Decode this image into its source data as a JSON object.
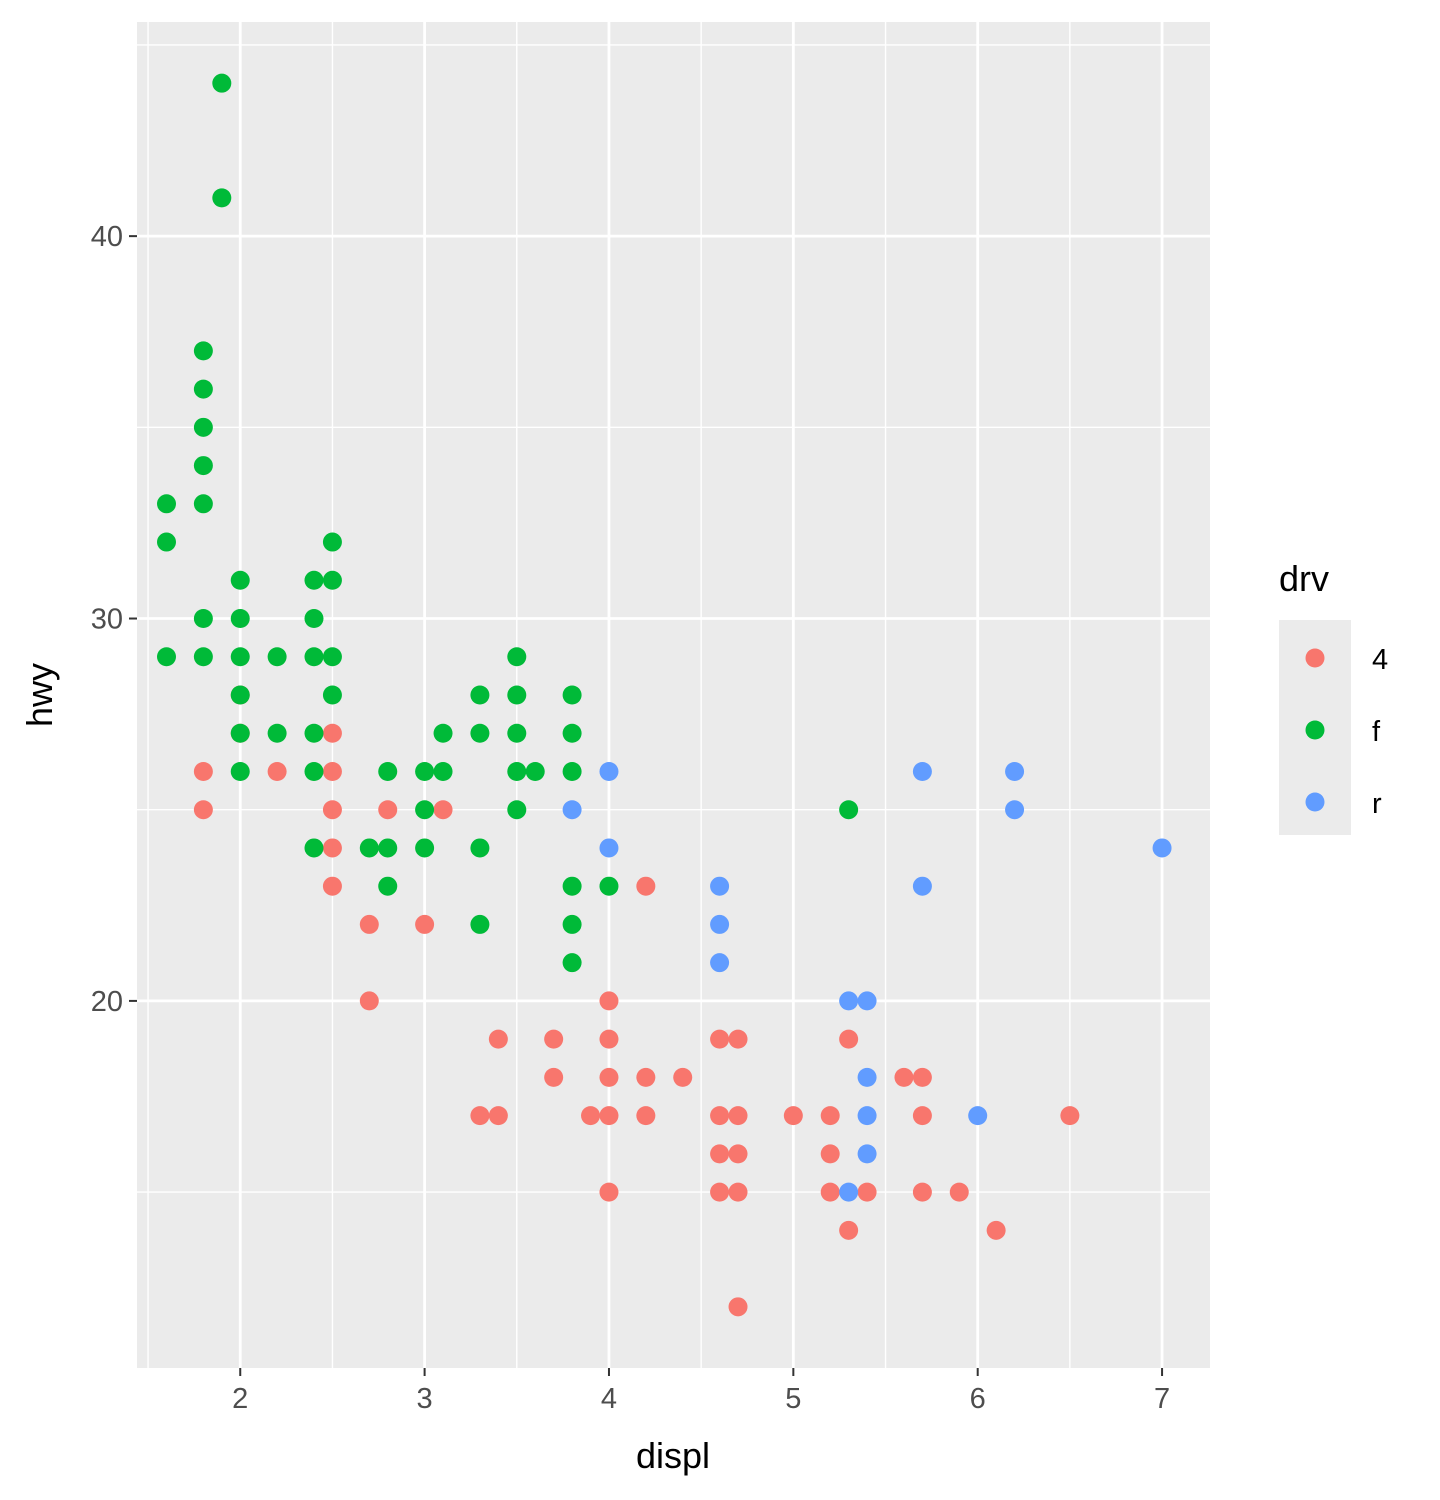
{
  "chart_data": {
    "type": "scatter",
    "title": "",
    "xlabel": "displ",
    "ylabel": "hwy",
    "xlim": [
      1.44,
      7.26
    ],
    "ylim": [
      10.4,
      45.6
    ],
    "xticks": [
      "2",
      "3",
      "4",
      "5",
      "6",
      "7"
    ],
    "xtick_values": [
      2,
      3,
      4,
      5,
      6,
      7
    ],
    "yticks": [
      "20",
      "30",
      "40"
    ],
    "ytick_values": [
      20,
      30,
      40
    ],
    "grid": true,
    "legend_title": "drv",
    "legend_position": "right",
    "series": [
      {
        "name": "4",
        "color": "#F8766D",
        "points": [
          [
            1.8,
            26
          ],
          [
            1.8,
            25
          ],
          [
            2.0,
            28
          ],
          [
            2.0,
            27
          ],
          [
            2.2,
            26
          ],
          [
            2.5,
            27
          ],
          [
            2.5,
            26
          ],
          [
            2.5,
            25
          ],
          [
            2.5,
            24
          ],
          [
            2.5,
            23
          ],
          [
            2.7,
            22
          ],
          [
            2.7,
            20
          ],
          [
            2.8,
            25
          ],
          [
            3.0,
            22
          ],
          [
            3.1,
            25
          ],
          [
            3.3,
            17
          ],
          [
            3.4,
            19
          ],
          [
            3.4,
            17
          ],
          [
            3.7,
            19
          ],
          [
            3.7,
            18
          ],
          [
            3.9,
            17
          ],
          [
            4.0,
            20
          ],
          [
            4.0,
            19
          ],
          [
            4.0,
            18
          ],
          [
            4.0,
            17
          ],
          [
            4.0,
            15
          ],
          [
            4.2,
            23
          ],
          [
            4.2,
            18
          ],
          [
            4.2,
            17
          ],
          [
            4.4,
            18
          ],
          [
            4.6,
            19
          ],
          [
            4.6,
            17
          ],
          [
            4.6,
            16
          ],
          [
            4.6,
            15
          ],
          [
            4.7,
            19
          ],
          [
            4.7,
            17
          ],
          [
            4.7,
            16
          ],
          [
            4.7,
            15
          ],
          [
            4.7,
            12
          ],
          [
            5.0,
            17
          ],
          [
            5.2,
            17
          ],
          [
            5.2,
            16
          ],
          [
            5.2,
            15
          ],
          [
            5.3,
            19
          ],
          [
            5.3,
            14
          ],
          [
            5.4,
            15
          ],
          [
            5.6,
            18
          ],
          [
            5.7,
            18
          ],
          [
            5.7,
            17
          ],
          [
            5.7,
            15
          ],
          [
            5.9,
            15
          ],
          [
            6.1,
            14
          ],
          [
            6.5,
            17
          ]
        ]
      },
      {
        "name": "f",
        "color": "#00BA38",
        "points": [
          [
            1.6,
            33
          ],
          [
            1.6,
            32
          ],
          [
            1.6,
            29
          ],
          [
            1.8,
            37
          ],
          [
            1.8,
            36
          ],
          [
            1.8,
            35
          ],
          [
            1.8,
            34
          ],
          [
            1.8,
            33
          ],
          [
            1.8,
            30
          ],
          [
            1.8,
            29
          ],
          [
            1.9,
            44
          ],
          [
            1.9,
            41
          ],
          [
            2.0,
            31
          ],
          [
            2.0,
            30
          ],
          [
            2.0,
            29
          ],
          [
            2.0,
            28
          ],
          [
            2.0,
            27
          ],
          [
            2.0,
            26
          ],
          [
            2.2,
            29
          ],
          [
            2.2,
            27
          ],
          [
            2.4,
            31
          ],
          [
            2.4,
            30
          ],
          [
            2.4,
            29
          ],
          [
            2.4,
            27
          ],
          [
            2.4,
            26
          ],
          [
            2.4,
            24
          ],
          [
            2.5,
            32
          ],
          [
            2.5,
            31
          ],
          [
            2.5,
            29
          ],
          [
            2.5,
            28
          ],
          [
            2.7,
            24
          ],
          [
            2.8,
            26
          ],
          [
            2.8,
            24
          ],
          [
            2.8,
            23
          ],
          [
            3.0,
            26
          ],
          [
            3.0,
            25
          ],
          [
            3.0,
            24
          ],
          [
            3.1,
            27
          ],
          [
            3.1,
            26
          ],
          [
            3.3,
            28
          ],
          [
            3.3,
            27
          ],
          [
            3.3,
            24
          ],
          [
            3.3,
            22
          ],
          [
            3.5,
            29
          ],
          [
            3.5,
            28
          ],
          [
            3.5,
            27
          ],
          [
            3.5,
            26
          ],
          [
            3.5,
            25
          ],
          [
            3.6,
            26
          ],
          [
            3.8,
            28
          ],
          [
            3.8,
            27
          ],
          [
            3.8,
            26
          ],
          [
            3.8,
            23
          ],
          [
            3.8,
            22
          ],
          [
            3.8,
            21
          ],
          [
            4.0,
            23
          ],
          [
            5.3,
            25
          ]
        ]
      },
      {
        "name": "r",
        "color": "#619CFF",
        "points": [
          [
            3.8,
            25
          ],
          [
            4.0,
            26
          ],
          [
            4.0,
            24
          ],
          [
            4.6,
            23
          ],
          [
            4.6,
            22
          ],
          [
            4.6,
            21
          ],
          [
            5.3,
            20
          ],
          [
            5.3,
            15
          ],
          [
            5.4,
            20
          ],
          [
            5.4,
            18
          ],
          [
            5.4,
            17
          ],
          [
            5.4,
            16
          ],
          [
            5.7,
            26
          ],
          [
            5.7,
            23
          ],
          [
            6.0,
            17
          ],
          [
            6.2,
            26
          ],
          [
            6.2,
            25
          ],
          [
            7.0,
            24
          ]
        ]
      }
    ]
  }
}
